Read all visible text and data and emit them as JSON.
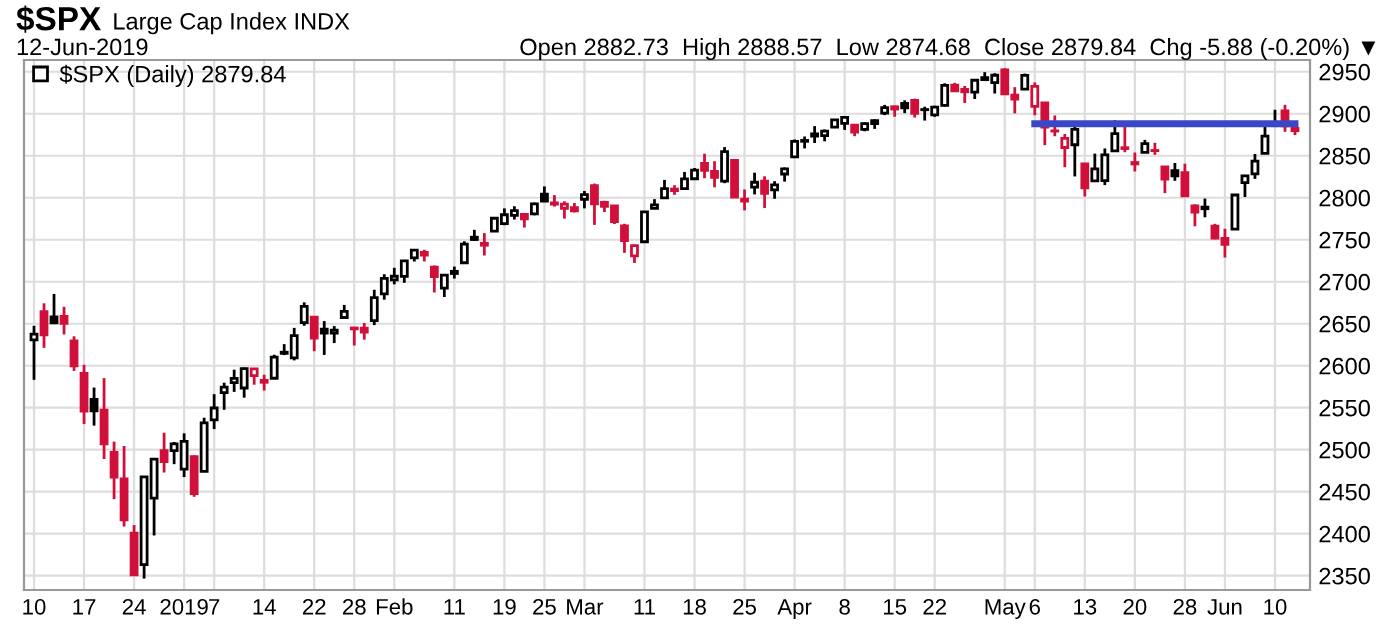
{
  "chart_data": {
    "type": "candlestick",
    "title": "$SPX",
    "subtitle": "Large Cap Index INDX",
    "annotations": [
      "12-Jun-2019",
      "Open 2882.73  High 2888.57  Low 2874.68  Close 2879.84  Chg -5.88 (-0.20%) ▼"
    ],
    "categories": [
      "10",
      null,
      null,
      null,
      null,
      "17",
      null,
      null,
      null,
      null,
      "24",
      null,
      null,
      null,
      null,
      "2019",
      null,
      null,
      "7",
      null,
      null,
      null,
      null,
      "14",
      null,
      null,
      null,
      null,
      "22",
      null,
      null,
      null,
      "28",
      null,
      null,
      null,
      "Feb",
      null,
      null,
      null,
      null,
      null,
      "11",
      null,
      null,
      null,
      null,
      "19",
      null,
      null,
      null,
      "25",
      null,
      null,
      null,
      "Mar",
      null,
      null,
      null,
      null,
      null,
      "11",
      null,
      null,
      null,
      null,
      "18",
      null,
      null,
      null,
      null,
      "25",
      null,
      null,
      null,
      null,
      "Apr",
      null,
      null,
      null,
      null,
      "8",
      null,
      null,
      null,
      null,
      "15",
      null,
      null,
      null,
      "22",
      null,
      null,
      null,
      null,
      null,
      null,
      "May",
      null,
      null,
      "6",
      null,
      null,
      null,
      null,
      "13",
      null,
      null,
      null,
      null,
      "20",
      null,
      null,
      null,
      null,
      "28",
      null,
      null,
      null,
      "Jun",
      null,
      null,
      null,
      null,
      "10",
      null,
      null
    ],
    "series": [
      {
        "name": "$SPX (Daily) 2879.84",
        "type": "candlestick",
        "ohlc": [
          [
            2630.86,
            2647.51,
            2583.23,
            2637.72
          ],
          [
            2664.44,
            2674.35,
            2621.3,
            2636.78
          ],
          [
            2658.23,
            2685.44,
            2650.26,
            2651.07
          ],
          [
            2658.7,
            2670.19,
            2637.27,
            2650.54
          ],
          [
            2629.68,
            2635.07,
            2593.84,
            2599.95
          ],
          [
            2590.75,
            2601.13,
            2530.54,
            2545.94
          ],
          [
            2559.9,
            2573.99,
            2528.71,
            2546.16
          ],
          [
            2547.05,
            2585.29,
            2488.96,
            2506.96
          ],
          [
            2496.77,
            2509.63,
            2441.18,
            2467.42
          ],
          [
            2465.38,
            2504.41,
            2408.55,
            2416.62
          ],
          [
            2400.56,
            2410.34,
            2351.1,
            2351.1
          ],
          [
            2363.12,
            2467.76,
            2346.58,
            2467.7
          ],
          [
            2442.5,
            2489.1,
            2397.94,
            2488.83
          ],
          [
            2498.77,
            2520.27,
            2472.89,
            2485.74
          ],
          [
            2498.94,
            2509.24,
            2482.82,
            2506.85
          ],
          [
            2476.96,
            2519.49,
            2467.47,
            2510.03
          ],
          [
            2491.92,
            2493.14,
            2443.96,
            2447.89
          ],
          [
            2474.33,
            2538.07,
            2474.33,
            2531.94
          ],
          [
            2535.61,
            2566.16,
            2524.56,
            2549.69
          ],
          [
            2568.11,
            2579.82,
            2547.56,
            2574.41
          ],
          [
            2580.0,
            2595.32,
            2568.89,
            2584.96
          ],
          [
            2573.51,
            2597.82,
            2562.02,
            2596.64
          ],
          [
            2588.11,
            2596.27,
            2577.4,
            2596.26
          ],
          [
            2580.31,
            2589.32,
            2570.41,
            2582.61
          ],
          [
            2585.1,
            2613.08,
            2585.1,
            2610.3
          ],
          [
            2614.75,
            2625.76,
            2612.68,
            2616.1
          ],
          [
            2609.28,
            2645.06,
            2606.36,
            2635.96
          ],
          [
            2651.27,
            2675.47,
            2647.58,
            2670.71
          ],
          [
            2657.88,
            2657.88,
            2617.27,
            2632.9
          ],
          [
            2643.48,
            2653.19,
            2612.86,
            2638.7
          ],
          [
            2638.84,
            2647.2,
            2627.01,
            2642.33
          ],
          [
            2657.44,
            2672.38,
            2657.33,
            2664.76
          ],
          [
            2644.97,
            2644.97,
            2624.06,
            2643.85
          ],
          [
            2644.89,
            2650.93,
            2631.05,
            2640.0
          ],
          [
            2653.62,
            2690.44,
            2648.34,
            2681.05
          ],
          [
            2685.49,
            2708.95,
            2678.65,
            2704.1
          ],
          [
            2702.32,
            2716.66,
            2696.88,
            2706.53
          ],
          [
            2706.49,
            2724.99,
            2698.75,
            2724.87
          ],
          [
            2728.34,
            2738.98,
            2724.03,
            2737.7
          ],
          [
            2735.05,
            2738.08,
            2724.15,
            2731.61
          ],
          [
            2717.53,
            2719.32,
            2687.26,
            2706.05
          ],
          [
            2692.36,
            2708.07,
            2681.83,
            2707.88
          ],
          [
            2712.4,
            2718.05,
            2703.79,
            2709.8
          ],
          [
            2722.61,
            2748.19,
            2722.61,
            2744.73
          ],
          [
            2750.3,
            2761.85,
            2748.63,
            2753.03
          ],
          [
            2743.5,
            2757.9,
            2731.23,
            2745.73
          ],
          [
            2760.24,
            2775.66,
            2760.24,
            2775.6
          ],
          [
            2769.28,
            2787.33,
            2767.29,
            2779.76
          ],
          [
            2779.05,
            2789.88,
            2774.06,
            2784.7
          ],
          [
            2780.24,
            2781.58,
            2764.55,
            2774.88
          ],
          [
            2780.67,
            2794.2,
            2779.11,
            2792.67
          ],
          [
            2804.35,
            2813.49,
            2794.99,
            2796.11
          ],
          [
            2792.36,
            2803.12,
            2789.47,
            2793.9
          ],
          [
            2787.5,
            2795.76,
            2775.13,
            2792.38
          ],
          [
            2788.11,
            2793.73,
            2782.51,
            2784.49
          ],
          [
            2798.22,
            2808.02,
            2787.38,
            2803.69
          ],
          [
            2814.37,
            2816.88,
            2767.66,
            2792.81
          ],
          [
            2794.41,
            2796.44,
            2782.97,
            2789.65
          ],
          [
            2790.27,
            2790.27,
            2768.69,
            2771.45
          ],
          [
            2766.53,
            2768.98,
            2734.45,
            2748.93
          ],
          [
            2730.79,
            2744.13,
            2722.27,
            2743.07
          ],
          [
            2747.61,
            2784.0,
            2747.61,
            2783.3
          ],
          [
            2787.34,
            2798.32,
            2786.73,
            2791.52
          ],
          [
            2799.78,
            2821.24,
            2799.78,
            2810.92
          ],
          [
            2810.38,
            2815.0,
            2803.46,
            2808.48
          ],
          [
            2810.79,
            2830.73,
            2810.79,
            2822.48
          ],
          [
            2822.61,
            2835.41,
            2821.99,
            2832.94
          ],
          [
            2840.76,
            2852.42,
            2823.27,
            2832.57
          ],
          [
            2831.34,
            2843.54,
            2812.43,
            2824.23
          ],
          [
            2819.72,
            2860.31,
            2817.38,
            2854.88
          ],
          [
            2844.52,
            2846.16,
            2800.47,
            2800.71
          ],
          [
            2796.01,
            2809.79,
            2785.02,
            2798.36
          ],
          [
            2812.66,
            2829.87,
            2803.99,
            2818.46
          ],
          [
            2819.72,
            2825.56,
            2787.72,
            2805.37
          ],
          [
            2809.4,
            2819.71,
            2798.77,
            2815.44
          ],
          [
            2828.27,
            2836.03,
            2819.23,
            2834.4
          ],
          [
            2848.63,
            2869.4,
            2848.63,
            2867.19
          ],
          [
            2868.24,
            2872.9,
            2858.75,
            2867.24
          ],
          [
            2876.09,
            2885.25,
            2865.17,
            2873.4
          ],
          [
            2873.99,
            2881.28,
            2867.14,
            2879.39
          ],
          [
            2884.16,
            2893.24,
            2882.99,
            2892.74
          ],
          [
            2888.46,
            2895.95,
            2880.78,
            2895.77
          ],
          [
            2886.58,
            2886.88,
            2873.33,
            2878.2
          ],
          [
            2881.37,
            2889.71,
            2879.13,
            2888.21
          ],
          [
            2891.92,
            2893.42,
            2881.99,
            2888.32
          ],
          [
            2900.86,
            2910.54,
            2898.37,
            2907.41
          ],
          [
            2908.32,
            2909.6,
            2896.48,
            2905.58
          ],
          [
            2912.26,
            2916.06,
            2900.71,
            2907.06
          ],
          [
            2916.04,
            2918.0,
            2895.45,
            2900.45
          ],
          [
            2904.81,
            2908.4,
            2891.9,
            2905.03
          ],
          [
            2898.78,
            2909.51,
            2896.35,
            2907.97
          ],
          [
            2909.99,
            2936.31,
            2908.53,
            2933.68
          ],
          [
            2934.0,
            2936.83,
            2926.05,
            2927.25
          ],
          [
            2928.99,
            2933.1,
            2912.84,
            2926.17
          ],
          [
            2925.81,
            2939.88,
            2917.56,
            2939.88
          ],
          [
            2940.58,
            2949.52,
            2939.35,
            2943.03
          ],
          [
            2937.14,
            2948.22,
            2924.11,
            2945.83
          ],
          [
            2952.33,
            2954.13,
            2923.36,
            2923.73
          ],
          [
            2922.16,
            2931.68,
            2900.5,
            2917.52
          ],
          [
            2929.21,
            2947.85,
            2929.21,
            2945.64
          ],
          [
            2908.89,
            2937.32,
            2898.21,
            2932.47
          ],
          [
            2913.03,
            2913.03,
            2862.6,
            2884.05
          ],
          [
            2879.61,
            2897.96,
            2873.28,
            2879.42
          ],
          [
            2859.84,
            2875.97,
            2836.4,
            2870.72
          ],
          [
            2863.1,
            2891.31,
            2825.39,
            2881.4
          ],
          [
            2840.19,
            2840.19,
            2801.43,
            2811.87
          ],
          [
            2820.12,
            2852.54,
            2820.12,
            2834.41
          ],
          [
            2820.38,
            2858.68,
            2815.08,
            2850.96
          ],
          [
            2855.8,
            2892.15,
            2855.8,
            2876.32
          ],
          [
            2858.6,
            2885.48,
            2854.23,
            2859.53
          ],
          [
            2841.94,
            2853.86,
            2831.29,
            2840.23
          ],
          [
            2854.02,
            2868.88,
            2854.02,
            2864.36
          ],
          [
            2856.06,
            2865.47,
            2851.11,
            2856.27
          ],
          [
            2836.7,
            2836.7,
            2805.49,
            2822.24
          ],
          [
            2832.41,
            2841.36,
            2820.19,
            2826.06
          ],
          [
            2830.03,
            2840.51,
            2801.58,
            2802.39
          ],
          [
            2790.25,
            2792.03,
            2766.06,
            2783.02
          ],
          [
            2786.94,
            2799.0,
            2776.74,
            2788.86
          ],
          [
            2766.15,
            2768.98,
            2750.52,
            2752.06
          ],
          [
            2751.53,
            2763.07,
            2728.81,
            2744.45
          ],
          [
            2762.64,
            2804.49,
            2762.64,
            2803.27
          ],
          [
            2818.09,
            2827.28,
            2800.92,
            2826.15
          ],
          [
            2828.51,
            2852.1,
            2822.45,
            2843.49
          ],
          [
            2852.87,
            2884.97,
            2852.87,
            2873.34
          ],
          [
            2885.83,
            2904.77,
            2885.51,
            2886.73
          ],
          [
            2903.27,
            2910.61,
            2878.53,
            2885.72
          ],
          [
            2882.73,
            2888.57,
            2874.68,
            2879.84
          ]
        ],
        "colors": [
          "#000000",
          "#d0103a",
          "#000000",
          "#d0103a",
          "#d0103a",
          "#d0103a",
          "#000000",
          "#d0103a",
          "#d0103a",
          "#d0103a",
          "#d0103a",
          "#000000",
          "#000000",
          "#d0103a",
          "#000000",
          "#000000",
          "#d0103a",
          "#000000",
          "#000000",
          "#000000",
          "#000000",
          "#000000",
          "#d0103a",
          "#d0103a",
          "#000000",
          "#000000",
          "#000000",
          "#000000",
          "#d0103a",
          "#000000",
          "#000000",
          "#000000",
          "#d0103a",
          "#d0103a",
          "#000000",
          "#000000",
          "#000000",
          "#000000",
          "#000000",
          "#d0103a",
          "#d0103a",
          "#000000",
          "#000000",
          "#000000",
          "#000000",
          "#d0103a",
          "#000000",
          "#000000",
          "#000000",
          "#d0103a",
          "#000000",
          "#000000",
          "#d0103a",
          "#d0103a",
          "#d0103a",
          "#000000",
          "#d0103a",
          "#d0103a",
          "#d0103a",
          "#d0103a",
          "#d0103a",
          "#000000",
          "#000000",
          "#000000",
          "#d0103a",
          "#000000",
          "#000000",
          "#d0103a",
          "#d0103a",
          "#000000",
          "#d0103a",
          "#d0103a",
          "#000000",
          "#d0103a",
          "#000000",
          "#000000",
          "#000000",
          "#000000",
          "#000000",
          "#000000",
          "#000000",
          "#000000",
          "#d0103a",
          "#000000",
          "#000000",
          "#000000",
          "#d0103a",
          "#000000",
          "#d0103a",
          "#000000",
          "#000000",
          "#000000",
          "#d0103a",
          "#d0103a",
          "#000000",
          "#000000",
          "#000000",
          "#d0103a",
          "#d0103a",
          "#000000",
          "#d0103a",
          "#d0103a",
          "#d0103a",
          "#d0103a",
          "#000000",
          "#d0103a",
          "#000000",
          "#000000",
          "#000000",
          "#d0103a",
          "#d0103a",
          "#000000",
          "#d0103a",
          "#d0103a",
          "#000000",
          "#d0103a",
          "#d0103a",
          "#000000",
          "#d0103a",
          "#d0103a",
          "#000000",
          "#000000",
          "#000000",
          "#000000",
          "#000000",
          "#d0103a",
          "#d0103a"
        ]
      },
      {
        "type": "line",
        "color": "#3a48c8",
        "values": [
          null,
          null,
          null,
          null,
          null,
          null,
          null,
          null,
          null,
          null,
          null,
          null,
          null,
          null,
          null,
          null,
          null,
          null,
          null,
          null,
          null,
          null,
          null,
          null,
          null,
          null,
          null,
          null,
          null,
          null,
          null,
          null,
          null,
          null,
          null,
          null,
          null,
          null,
          null,
          null,
          null,
          null,
          null,
          null,
          null,
          null,
          null,
          null,
          null,
          null,
          null,
          null,
          null,
          null,
          null,
          null,
          null,
          null,
          null,
          null,
          null,
          null,
          null,
          null,
          null,
          null,
          null,
          null,
          null,
          null,
          null,
          null,
          null,
          null,
          null,
          null,
          null,
          null,
          null,
          null,
          null,
          null,
          null,
          null,
          null,
          null,
          null,
          null,
          null,
          null,
          null,
          null,
          null,
          null,
          null,
          null,
          null,
          null,
          null,
          null,
          2888,
          2888,
          2888,
          2888,
          2888,
          2888,
          2888,
          2888,
          2888,
          2888,
          2888,
          2888,
          2888,
          2888,
          2888,
          2888,
          2888,
          2888,
          2888,
          2888,
          2888,
          2888,
          2888,
          2888,
          2888,
          2888,
          2888
        ]
      }
    ],
    "ylim": [
      2333,
      2964
    ],
    "yticks": [
      2350,
      2400,
      2450,
      2500,
      2550,
      2600,
      2650,
      2700,
      2750,
      2800,
      2850,
      2900,
      2950
    ],
    "grid": true,
    "legend": "top left"
  }
}
